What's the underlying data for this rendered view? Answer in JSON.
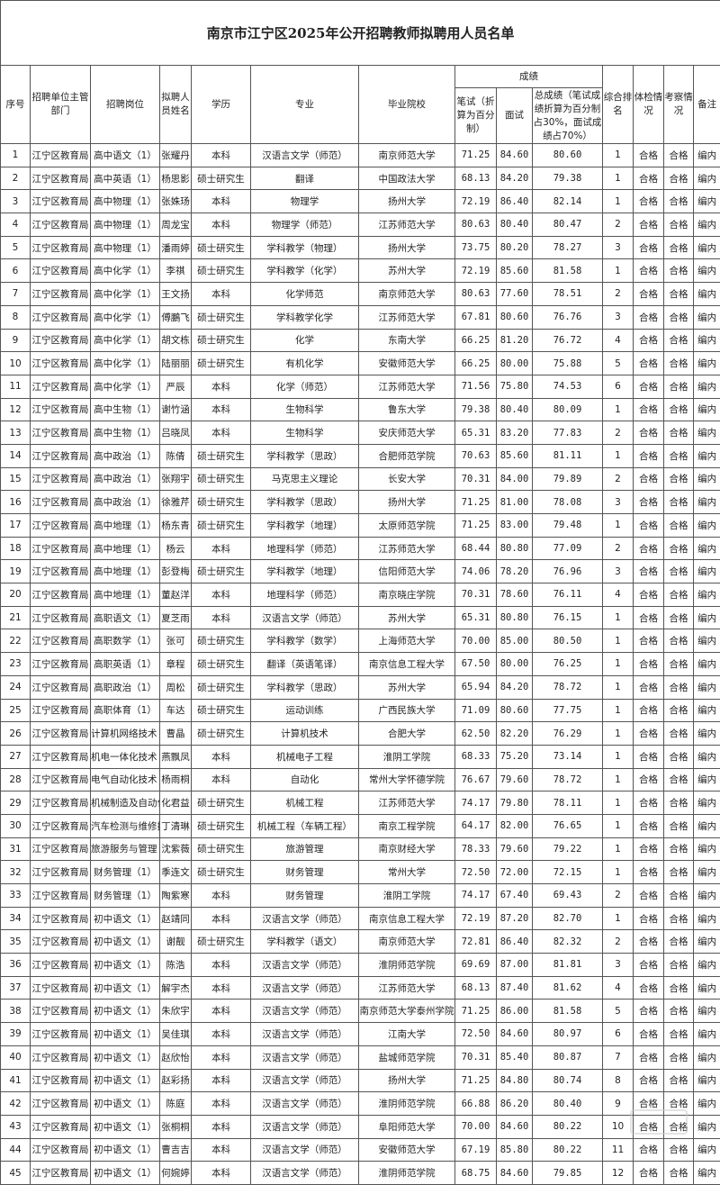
{
  "title": "南京市江宁区2025年公开招聘教师拟聘用人员名单",
  "headers": {
    "index": "序号",
    "department": "招聘单位主管部门",
    "position": "招聘岗位",
    "name": "拟聘人员姓名",
    "education": "学历",
    "major": "专业",
    "school": "毕业院校",
    "scores": "成绩",
    "written": "笔试（折算为百分制）",
    "interview": "面试",
    "total": "总成绩（笔试成绩折算为百分制占30%，面试成绩占70%）",
    "rank": "综合排名",
    "physical": "体检情况",
    "inspection": "考察情况",
    "remark": "备注"
  },
  "rows": [
    [
      "1",
      "江宁区教育局",
      "高中语文（1）",
      "张耀丹",
      "本科",
      "汉语言文学（师范）",
      "南京师范大学",
      "71.25",
      "84.60",
      "80.60",
      "1",
      "合格",
      "合格",
      "编内"
    ],
    [
      "2",
      "江宁区教育局",
      "高中英语（1）",
      "杨思影",
      "硕士研究生",
      "翻译",
      "中国政法大学",
      "68.13",
      "84.20",
      "79.38",
      "1",
      "合格",
      "合格",
      "编内"
    ],
    [
      "3",
      "江宁区教育局",
      "高中物理（1）",
      "张姝玚",
      "本科",
      "物理学",
      "扬州大学",
      "72.19",
      "86.40",
      "82.14",
      "1",
      "合格",
      "合格",
      "编内"
    ],
    [
      "4",
      "江宁区教育局",
      "高中物理（1）",
      "周龙宝",
      "本科",
      "物理学（师范）",
      "江苏师范大学",
      "80.63",
      "80.40",
      "80.47",
      "2",
      "合格",
      "合格",
      "编内"
    ],
    [
      "5",
      "江宁区教育局",
      "高中物理（1）",
      "潘雨婷",
      "硕士研究生",
      "学科教学（物理）",
      "扬州大学",
      "73.75",
      "80.20",
      "78.27",
      "3",
      "合格",
      "合格",
      "编内"
    ],
    [
      "6",
      "江宁区教育局",
      "高中化学（1）",
      "李祺",
      "硕士研究生",
      "学科教学（化学）",
      "苏州大学",
      "72.19",
      "85.60",
      "81.58",
      "1",
      "合格",
      "合格",
      "编内"
    ],
    [
      "7",
      "江宁区教育局",
      "高中化学（1）",
      "王文扬",
      "本科",
      "化学师范",
      "南京师范大学",
      "80.63",
      "77.60",
      "78.51",
      "2",
      "合格",
      "合格",
      "编内"
    ],
    [
      "8",
      "江宁区教育局",
      "高中化学（1）",
      "傅鵬飞",
      "硕士研究生",
      "学科教学化学",
      "江苏师范大学",
      "67.81",
      "80.60",
      "76.76",
      "3",
      "合格",
      "合格",
      "编内"
    ],
    [
      "9",
      "江宁区教育局",
      "高中化学（1）",
      "胡文栋",
      "硕士研究生",
      "化学",
      "东南大学",
      "66.25",
      "81.20",
      "76.72",
      "4",
      "合格",
      "合格",
      "编内"
    ],
    [
      "10",
      "江宁区教育局",
      "高中化学（1）",
      "陆丽丽",
      "硕士研究生",
      "有机化学",
      "安徽师范大学",
      "66.25",
      "80.00",
      "75.88",
      "5",
      "合格",
      "合格",
      "编内"
    ],
    [
      "11",
      "江宁区教育局",
      "高中化学（1）",
      "严辰",
      "本科",
      "化学（师范）",
      "江苏师范大学",
      "71.56",
      "75.80",
      "74.53",
      "6",
      "合格",
      "合格",
      "编内"
    ],
    [
      "12",
      "江宁区教育局",
      "高中生物（1）",
      "谢竹涵",
      "本科",
      "生物科学",
      "鲁东大学",
      "79.38",
      "80.40",
      "80.09",
      "1",
      "合格",
      "合格",
      "编内"
    ],
    [
      "13",
      "江宁区教育局",
      "高中生物（1）",
      "吕晓凤",
      "本科",
      "生物科学",
      "安庆师范大学",
      "65.31",
      "83.20",
      "77.83",
      "2",
      "合格",
      "合格",
      "编内"
    ],
    [
      "14",
      "江宁区教育局",
      "高中政治（1）",
      "陈倩",
      "硕士研究生",
      "学科教学（思政）",
      "合肥师范学院",
      "70.63",
      "85.60",
      "81.11",
      "1",
      "合格",
      "合格",
      "编内"
    ],
    [
      "15",
      "江宁区教育局",
      "高中政治（1）",
      "张翔宇",
      "硕士研究生",
      "马克思主义理论",
      "长安大学",
      "70.31",
      "84.00",
      "79.89",
      "2",
      "合格",
      "合格",
      "编内"
    ],
    [
      "16",
      "江宁区教育局",
      "高中政治（1）",
      "徐雅芹",
      "硕士研究生",
      "学科教学（思政）",
      "扬州大学",
      "71.25",
      "81.00",
      "78.08",
      "3",
      "合格",
      "合格",
      "编内"
    ],
    [
      "17",
      "江宁区教育局",
      "高中地理（1）",
      "杨东青",
      "硕士研究生",
      "学科教学（地理）",
      "太原师范学院",
      "71.25",
      "83.00",
      "79.48",
      "1",
      "合格",
      "合格",
      "编内"
    ],
    [
      "18",
      "江宁区教育局",
      "高中地理（1）",
      "杨云",
      "本科",
      "地理科学（师范）",
      "江苏师范大学",
      "68.44",
      "80.80",
      "77.09",
      "2",
      "合格",
      "合格",
      "编内"
    ],
    [
      "19",
      "江宁区教育局",
      "高中地理（1）",
      "彭登梅",
      "硕士研究生",
      "学科教学（地理）",
      "信阳师范大学",
      "74.06",
      "78.20",
      "76.96",
      "3",
      "合格",
      "合格",
      "编内"
    ],
    [
      "20",
      "江宁区教育局",
      "高中地理（1）",
      "董赵洋",
      "本科",
      "地理科学（师范）",
      "南京晓庄学院",
      "70.31",
      "78.60",
      "76.11",
      "4",
      "合格",
      "合格",
      "编内"
    ],
    [
      "21",
      "江宁区教育局",
      "高职语文（1）",
      "夏芝雨",
      "本科",
      "汉语言文学（师范）",
      "苏州大学",
      "65.31",
      "80.80",
      "76.15",
      "1",
      "合格",
      "合格",
      "编内"
    ],
    [
      "22",
      "江宁区教育局",
      "高职数学（1）",
      "张可",
      "硕士研究生",
      "学科教学（数学）",
      "上海师范大学",
      "70.00",
      "85.00",
      "80.50",
      "1",
      "合格",
      "合格",
      "编内"
    ],
    [
      "23",
      "江宁区教育局",
      "高职英语（1）",
      "章程",
      "硕士研究生",
      "翻译（英语笔译）",
      "南京信息工程大学",
      "67.50",
      "80.00",
      "76.25",
      "1",
      "合格",
      "合格",
      "编内"
    ],
    [
      "24",
      "江宁区教育局",
      "高职政治（1）",
      "周松",
      "硕士研究生",
      "学科教学（思政）",
      "苏州大学",
      "65.94",
      "84.20",
      "78.72",
      "1",
      "合格",
      "合格",
      "编内"
    ],
    [
      "25",
      "江宁区教育局",
      "高职体育（1）",
      "车达",
      "硕士研究生",
      "运动训练",
      "广西民族大学",
      "71.09",
      "80.60",
      "77.75",
      "1",
      "合格",
      "合格",
      "编内"
    ],
    [
      "26",
      "江宁区教育局",
      "计算机网络技术（1）",
      "曹晶",
      "硕士研究生",
      "计算机技术",
      "合肥大学",
      "62.50",
      "82.20",
      "76.29",
      "1",
      "合格",
      "合格",
      "编内"
    ],
    [
      "27",
      "江宁区教育局",
      "机电一体化技术（1）",
      "燕飘凤",
      "本科",
      "机械电子工程",
      "淮阴工学院",
      "68.33",
      "75.20",
      "73.14",
      "1",
      "合格",
      "合格",
      "编内"
    ],
    [
      "28",
      "江宁区教育局",
      "电气自动化技术（1）",
      "杨雨桐",
      "本科",
      "自动化",
      "常州大学怀德学院",
      "76.67",
      "79.60",
      "78.72",
      "1",
      "合格",
      "合格",
      "编内"
    ],
    [
      "29",
      "江宁区教育局",
      "机械制造及自动化（1）",
      "化君益",
      "硕士研究生",
      "机械工程",
      "江苏师范大学",
      "74.17",
      "79.80",
      "78.11",
      "1",
      "合格",
      "合格",
      "编内"
    ],
    [
      "30",
      "江宁区教育局",
      "汽车检测与维修技术（1）",
      "丁清琳",
      "硕士研究生",
      "机械工程（车辆工程）",
      "南京工程学院",
      "64.17",
      "82.00",
      "76.65",
      "1",
      "合格",
      "合格",
      "编内"
    ],
    [
      "31",
      "江宁区教育局",
      "旅游服务与管理（1）",
      "沈紫薇",
      "硕士研究生",
      "旅游管理",
      "南京财经大学",
      "78.33",
      "79.60",
      "79.22",
      "1",
      "合格",
      "合格",
      "编内"
    ],
    [
      "32",
      "江宁区教育局",
      "财务管理（1）",
      "季连文",
      "硕士研究生",
      "财务管理",
      "常州大学",
      "72.50",
      "72.00",
      "72.15",
      "1",
      "合格",
      "合格",
      "编内"
    ],
    [
      "33",
      "江宁区教育局",
      "财务管理（1）",
      "陶紫寒",
      "本科",
      "财务管理",
      "淮阴工学院",
      "74.17",
      "67.40",
      "69.43",
      "2",
      "合格",
      "合格",
      "编内"
    ],
    [
      "34",
      "江宁区教育局",
      "初中语文（1）",
      "赵靖同",
      "本科",
      "汉语言文学（师范）",
      "南京信息工程大学",
      "72.19",
      "87.20",
      "82.70",
      "1",
      "合格",
      "合格",
      "编内"
    ],
    [
      "35",
      "江宁区教育局",
      "初中语文（1）",
      "谢靓",
      "硕士研究生",
      "学科教学（语文）",
      "南京师范大学",
      "72.81",
      "86.40",
      "82.32",
      "2",
      "合格",
      "合格",
      "编内"
    ],
    [
      "36",
      "江宁区教育局",
      "初中语文（1）",
      "陈浩",
      "本科",
      "汉语言文学（师范）",
      "淮阴师范学院",
      "69.69",
      "87.00",
      "81.81",
      "3",
      "合格",
      "合格",
      "编内"
    ],
    [
      "37",
      "江宁区教育局",
      "初中语文（1）",
      "解宇杰",
      "本科",
      "汉语言文学（师范）",
      "江苏师范大学",
      "68.13",
      "87.40",
      "81.62",
      "4",
      "合格",
      "合格",
      "编内"
    ],
    [
      "38",
      "江宁区教育局",
      "初中语文（1）",
      "朱欣宇",
      "本科",
      "汉语言文学（师范）",
      "南京师范大学泰州学院",
      "71.25",
      "86.00",
      "81.58",
      "5",
      "合格",
      "合格",
      "编内"
    ],
    [
      "39",
      "江宁区教育局",
      "初中语文（1）",
      "吴佳琪",
      "本科",
      "汉语言文学（师范）",
      "江南大学",
      "72.50",
      "84.60",
      "80.97",
      "6",
      "合格",
      "合格",
      "编内"
    ],
    [
      "40",
      "江宁区教育局",
      "初中语文（1）",
      "赵欣怡",
      "本科",
      "汉语言文学（师范）",
      "盐城师范学院",
      "70.31",
      "85.40",
      "80.87",
      "7",
      "合格",
      "合格",
      "编内"
    ],
    [
      "41",
      "江宁区教育局",
      "初中语文（1）",
      "赵彩扬",
      "本科",
      "汉语言文学（师范）",
      "扬州大学",
      "71.25",
      "84.80",
      "80.74",
      "8",
      "合格",
      "合格",
      "编内"
    ],
    [
      "42",
      "江宁区教育局",
      "初中语文（1）",
      "陈庭",
      "本科",
      "汉语言文学（师范）",
      "淮阴师范学院",
      "66.88",
      "86.20",
      "80.40",
      "9",
      "合格",
      "合格",
      "编内"
    ],
    [
      "43",
      "江宁区教育局",
      "初中语文（1）",
      "张桐桐",
      "本科",
      "汉语言文学（师范）",
      "阜阳师范大学",
      "70.00",
      "84.60",
      "80.22",
      "10",
      "合格",
      "合格",
      "编内"
    ],
    [
      "44",
      "江宁区教育局",
      "初中语文（1）",
      "曹吉吉",
      "本科",
      "汉语言文学（师范）",
      "安徽师范大学",
      "67.19",
      "85.80",
      "80.22",
      "11",
      "合格",
      "合格",
      "编内"
    ],
    [
      "45",
      "江宁区教育局",
      "初中语文（1）",
      "何婉婷",
      "本科",
      "汉语言文学（师范）",
      "淮阴师范学院",
      "68.75",
      "84.60",
      "79.85",
      "12",
      "合格",
      "合格",
      "编内"
    ]
  ]
}
